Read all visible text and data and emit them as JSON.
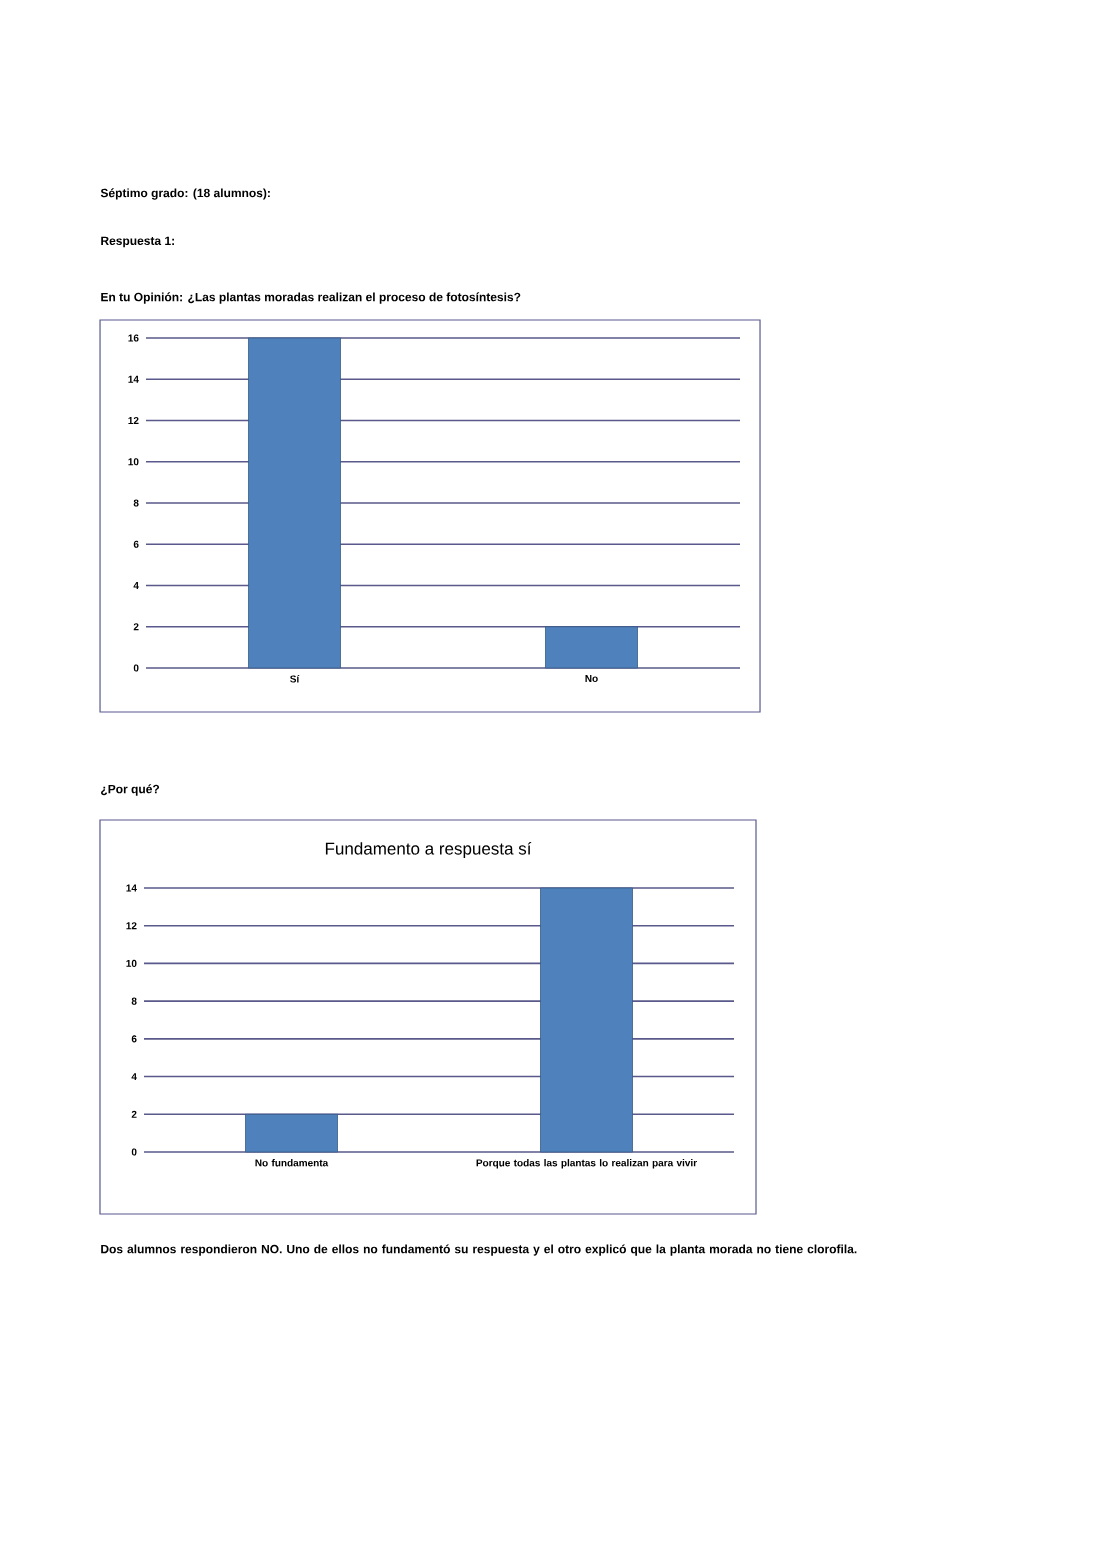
{
  "chart_data": [
    {
      "type": "bar",
      "subtitle": "Séptimo grado: (18 alumnos):",
      "annotations": [
        "Respuesta 1:"
      ],
      "title": "En tu Opinión: ¿Las plantas moradas realizan el proceso de fotosíntesis?",
      "categories": [
        "Sí",
        "No"
      ],
      "values": [
        16,
        2
      ],
      "color": "#4f81bd",
      "ylim": [
        0,
        16
      ],
      "yticks": [
        0,
        2,
        4,
        6,
        8,
        10,
        12,
        14,
        16
      ],
      "grid": "y"
    },
    {
      "type": "bar",
      "title": "Fundamento a respuesta sí",
      "annotations": [
        "¿Por qué?",
        "Dos alumnos respondieron NO. Uno de ellos no fundamentó su respuesta y el otro explicó que la planta morada no tiene clorofila."
      ],
      "categories": [
        "No fundamenta",
        "Porque todas las plantas lo realizan para vivir"
      ],
      "values": [
        2,
        14
      ],
      "color": "#4f81bd",
      "ylim": [
        0,
        14
      ],
      "yticks": [
        0,
        2,
        4,
        6,
        8,
        10,
        12,
        14
      ],
      "grid": "y"
    }
  ]
}
